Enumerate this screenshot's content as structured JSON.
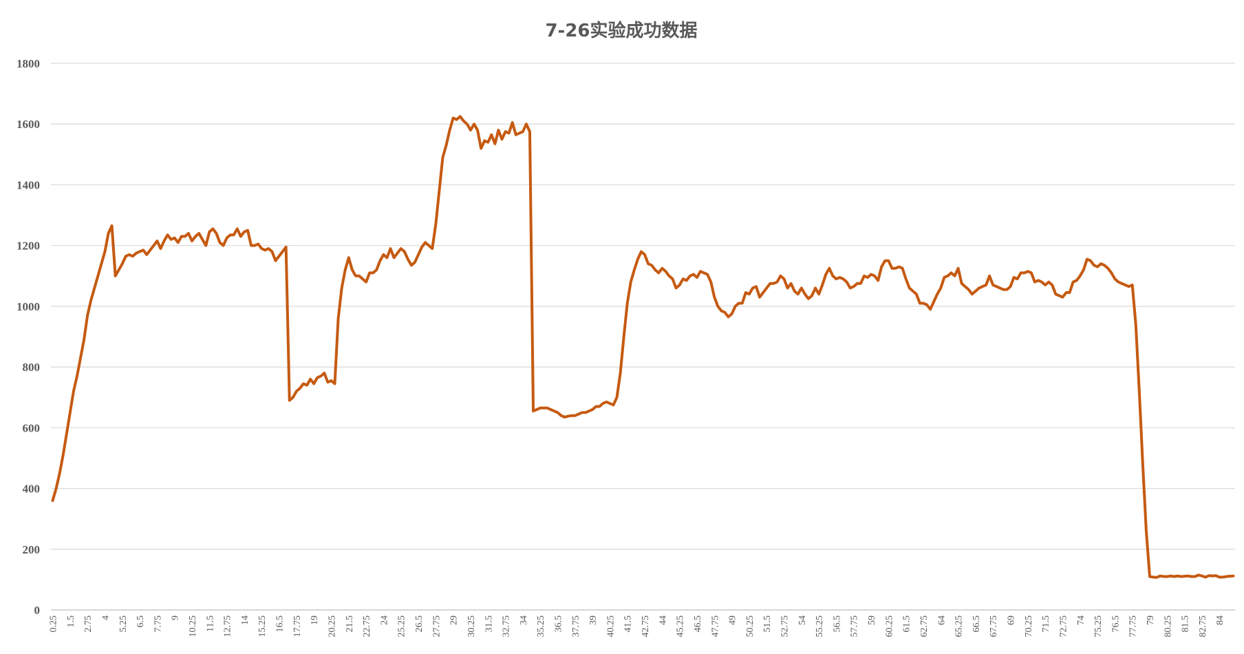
{
  "chart_data": {
    "type": "line",
    "title": "7-26实验成功数据",
    "xlabel": "",
    "ylabel": "",
    "ylim": [
      0,
      1800
    ],
    "yticks": [
      0,
      200,
      400,
      600,
      800,
      1000,
      1200,
      1400,
      1600,
      1800
    ],
    "x_start": 0.25,
    "x_step": 0.25,
    "x_tick_every": 5,
    "grid": true,
    "legend": "none",
    "series": [
      {
        "color": "#c55a11",
        "values": [
          360,
          400,
          450,
          510,
          580,
          650,
          720,
          770,
          830,
          890,
          970,
          1020,
          1060,
          1100,
          1140,
          1180,
          1240,
          1265,
          1100,
          1120,
          1140,
          1165,
          1170,
          1165,
          1175,
          1180,
          1185,
          1170,
          1185,
          1200,
          1215,
          1190,
          1215,
          1235,
          1220,
          1225,
          1210,
          1230,
          1230,
          1240,
          1215,
          1230,
          1240,
          1220,
          1200,
          1245,
          1255,
          1240,
          1210,
          1200,
          1225,
          1235,
          1235,
          1255,
          1230,
          1245,
          1250,
          1200,
          1200,
          1205,
          1190,
          1185,
          1190,
          1180,
          1150,
          1165,
          1180,
          1195,
          690,
          700,
          720,
          730,
          745,
          740,
          760,
          745,
          765,
          770,
          780,
          750,
          755,
          745,
          960,
          1060,
          1120,
          1160,
          1120,
          1100,
          1100,
          1090,
          1080,
          1110,
          1110,
          1120,
          1150,
          1170,
          1160,
          1190,
          1160,
          1175,
          1190,
          1180,
          1155,
          1135,
          1145,
          1170,
          1195,
          1210,
          1200,
          1190,
          1270,
          1380,
          1490,
          1530,
          1580,
          1620,
          1615,
          1625,
          1610,
          1600,
          1580,
          1600,
          1580,
          1520,
          1545,
          1540,
          1565,
          1535,
          1580,
          1550,
          1575,
          1570,
          1605,
          1565,
          1570,
          1575,
          1600,
          1575,
          655,
          660,
          665,
          665,
          665,
          660,
          655,
          650,
          640,
          635,
          638,
          640,
          640,
          645,
          650,
          650,
          655,
          660,
          670,
          670,
          680,
          685,
          680,
          675,
          700,
          780,
          900,
          1010,
          1080,
          1120,
          1155,
          1180,
          1170,
          1140,
          1135,
          1120,
          1110,
          1125,
          1115,
          1100,
          1090,
          1060,
          1070,
          1090,
          1085,
          1100,
          1105,
          1095,
          1115,
          1110,
          1105,
          1080,
          1030,
          1000,
          985,
          980,
          965,
          975,
          1000,
          1010,
          1010,
          1045,
          1040,
          1060,
          1065,
          1030,
          1045,
          1060,
          1075,
          1075,
          1080,
          1100,
          1090,
          1060,
          1075,
          1050,
          1040,
          1060,
          1040,
          1025,
          1035,
          1060,
          1040,
          1070,
          1105,
          1125,
          1100,
          1090,
          1095,
          1090,
          1080,
          1060,
          1065,
          1075,
          1075,
          1100,
          1095,
          1105,
          1100,
          1085,
          1130,
          1150,
          1150,
          1125,
          1125,
          1130,
          1125,
          1090,
          1060,
          1050,
          1040,
          1010,
          1010,
          1005,
          990,
          1015,
          1040,
          1060,
          1095,
          1100,
          1110,
          1100,
          1125,
          1075,
          1065,
          1055,
          1040,
          1050,
          1060,
          1065,
          1070,
          1100,
          1070,
          1065,
          1060,
          1055,
          1055,
          1065,
          1095,
          1090,
          1110,
          1110,
          1115,
          1110,
          1080,
          1085,
          1080,
          1070,
          1080,
          1070,
          1040,
          1035,
          1030,
          1045,
          1045,
          1080,
          1085,
          1100,
          1120,
          1155,
          1150,
          1135,
          1130,
          1140,
          1135,
          1125,
          1110,
          1090,
          1080,
          1075,
          1070,
          1065,
          1070,
          940,
          720,
          480,
          260,
          110,
          108,
          107,
          112,
          110,
          110,
          112,
          110,
          112,
          110,
          111,
          112,
          110,
          110,
          115,
          112,
          108,
          113,
          112,
          113,
          108,
          108,
          110,
          111,
          112
        ]
      }
    ]
  }
}
